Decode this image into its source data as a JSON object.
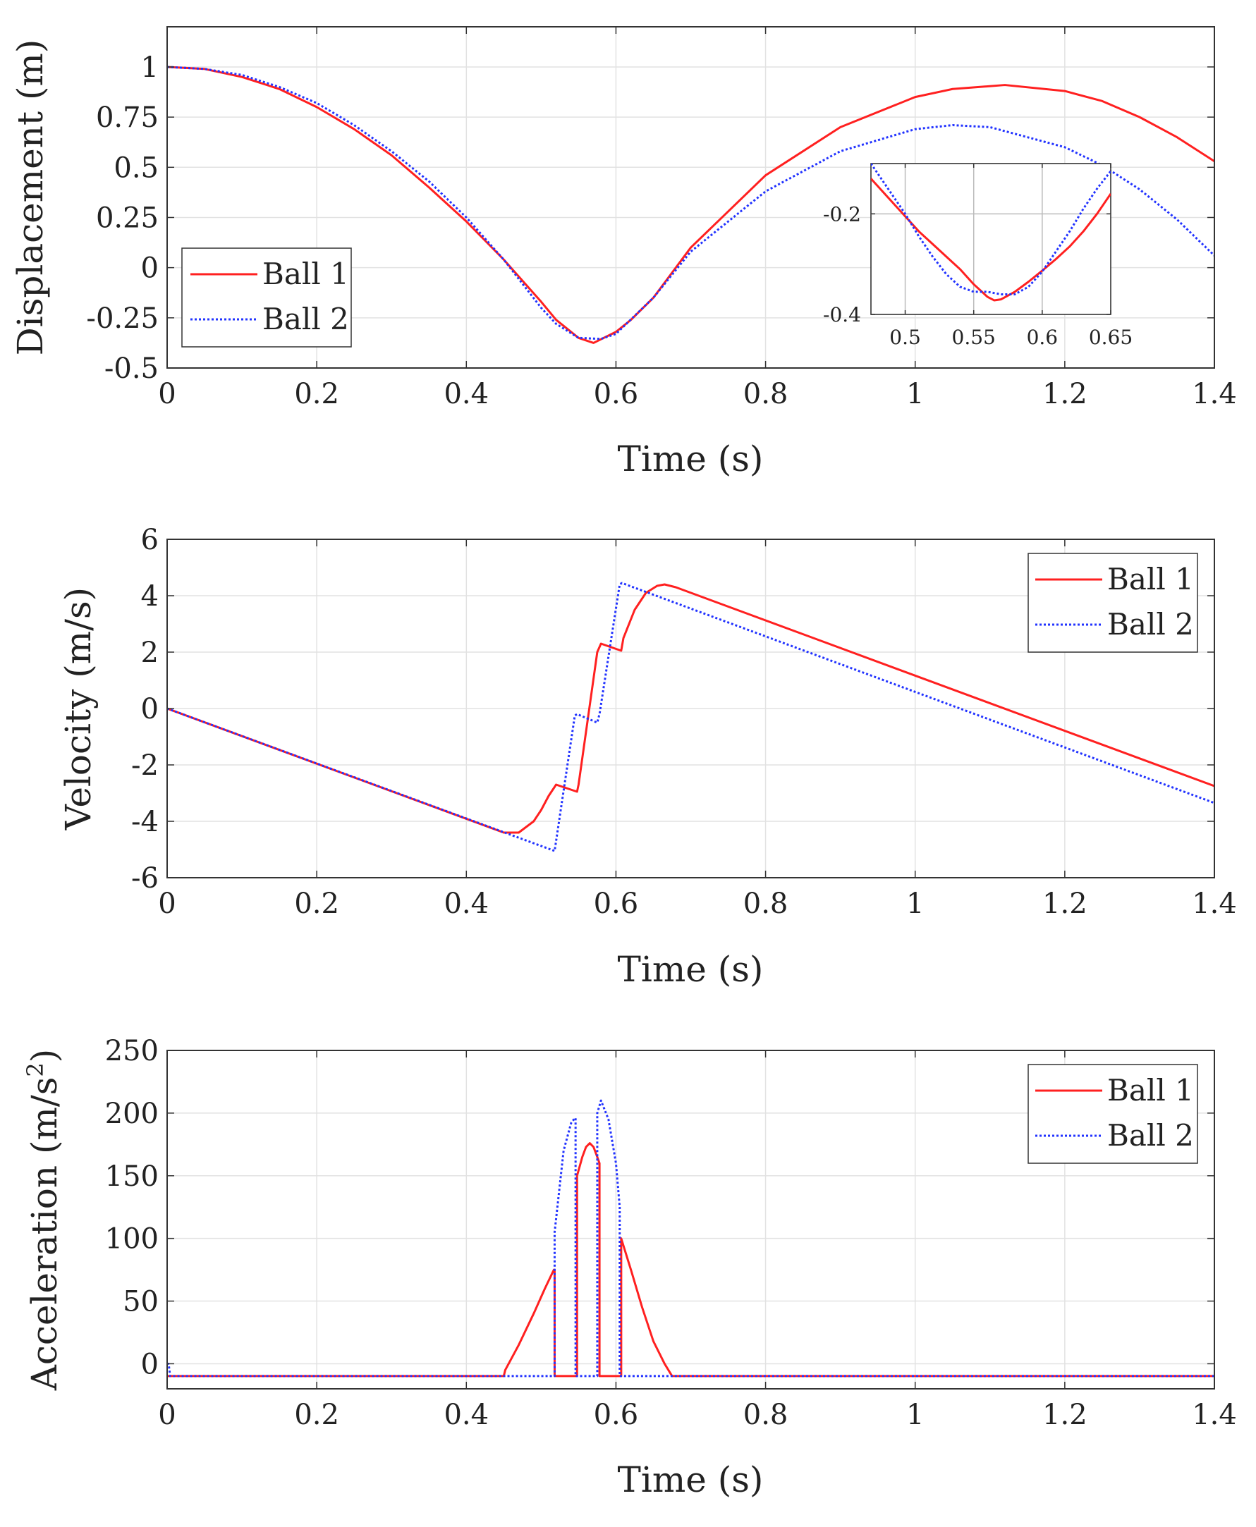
{
  "chart_data": [
    {
      "type": "line",
      "title": "",
      "xlabel": "Time (s)",
      "ylabel": "Displacement (m)",
      "xlim": [
        0,
        1.4
      ],
      "ylim": [
        -0.5,
        1.2
      ],
      "xticks": [
        0,
        0.2,
        0.4,
        0.6,
        0.8,
        1,
        1.2,
        1.4
      ],
      "xtick_labels": [
        "0",
        "0.2",
        "0.4",
        "0.6",
        "0.8",
        "1",
        "1.2",
        "1.4"
      ],
      "yticks": [
        -0.5,
        -0.25,
        0,
        0.25,
        0.5,
        0.75,
        1
      ],
      "ytick_labels": [
        "-0.5",
        "-0.25",
        "0",
        "0.25",
        "0.5",
        "0.75",
        "1"
      ],
      "grid": true,
      "legend_position": "lower-left",
      "series": [
        {
          "name": "Ball 1",
          "color": "#ff2020",
          "style": "solid",
          "x": [
            0,
            0.05,
            0.1,
            0.15,
            0.2,
            0.25,
            0.3,
            0.35,
            0.4,
            0.45,
            0.5,
            0.52,
            0.55,
            0.57,
            0.6,
            0.62,
            0.65,
            0.7,
            0.8,
            0.9,
            1.0,
            1.05,
            1.12,
            1.2,
            1.25,
            1.3,
            1.35,
            1.4
          ],
          "y": [
            1.0,
            0.99,
            0.95,
            0.89,
            0.8,
            0.69,
            0.56,
            0.4,
            0.23,
            0.04,
            -0.17,
            -0.26,
            -0.35,
            -0.375,
            -0.32,
            -0.26,
            -0.15,
            0.1,
            0.46,
            0.7,
            0.85,
            0.89,
            0.91,
            0.88,
            0.83,
            0.75,
            0.65,
            0.53
          ]
        },
        {
          "name": "Ball 2",
          "color": "#2233ff",
          "style": "dotted",
          "x": [
            0,
            0.05,
            0.1,
            0.15,
            0.2,
            0.25,
            0.3,
            0.35,
            0.4,
            0.45,
            0.5,
            0.52,
            0.55,
            0.58,
            0.6,
            0.65,
            0.7,
            0.8,
            0.9,
            1.0,
            1.05,
            1.1,
            1.2,
            1.25,
            1.3,
            1.35,
            1.4
          ],
          "y": [
            1.0,
            0.99,
            0.96,
            0.9,
            0.82,
            0.71,
            0.58,
            0.43,
            0.25,
            0.04,
            -0.2,
            -0.28,
            -0.35,
            -0.355,
            -0.33,
            -0.15,
            0.08,
            0.38,
            0.58,
            0.69,
            0.71,
            0.7,
            0.6,
            0.51,
            0.39,
            0.24,
            0.06
          ]
        }
      ],
      "inset": {
        "xlim": [
          0.475,
          0.65
        ],
        "ylim": [
          -0.4,
          -0.1
        ],
        "xticks": [
          0.5,
          0.55,
          0.6,
          0.65
        ],
        "xtick_labels": [
          "0.5",
          "0.55",
          "0.6",
          "0.65"
        ],
        "yticks": [
          -0.4,
          -0.2
        ],
        "ytick_labels": [
          "-0.4",
          "-0.2"
        ],
        "series": [
          {
            "name": "Ball 1",
            "color": "#ff2020",
            "style": "solid",
            "x": [
              0.475,
              0.49,
              0.5,
              0.51,
              0.52,
              0.53,
              0.54,
              0.55,
              0.56,
              0.565,
              0.57,
              0.58,
              0.59,
              0.6,
              0.61,
              0.62,
              0.63,
              0.64,
              0.65
            ],
            "y": [
              -0.13,
              -0.175,
              -0.205,
              -0.235,
              -0.26,
              -0.285,
              -0.31,
              -0.34,
              -0.365,
              -0.372,
              -0.37,
              -0.355,
              -0.335,
              -0.313,
              -0.29,
              -0.265,
              -0.235,
              -0.2,
              -0.16
            ]
          },
          {
            "name": "Ball 2",
            "color": "#2233ff",
            "style": "dotted",
            "x": [
              0.475,
              0.49,
              0.5,
              0.51,
              0.52,
              0.53,
              0.54,
              0.55,
              0.56,
              0.57,
              0.58,
              0.59,
              0.6,
              0.61,
              0.62,
              0.63,
              0.64,
              0.65
            ],
            "y": [
              -0.1,
              -0.16,
              -0.2,
              -0.245,
              -0.285,
              -0.32,
              -0.345,
              -0.355,
              -0.355,
              -0.36,
              -0.36,
              -0.345,
              -0.315,
              -0.275,
              -0.235,
              -0.19,
              -0.15,
              -0.115
            ]
          }
        ]
      }
    },
    {
      "type": "line",
      "title": "",
      "xlabel": "Time (s)",
      "ylabel": "Velocity (m/s)",
      "xlim": [
        0,
        1.4
      ],
      "ylim": [
        -6,
        6
      ],
      "xticks": [
        0,
        0.2,
        0.4,
        0.6,
        0.8,
        1,
        1.2,
        1.4
      ],
      "xtick_labels": [
        "0",
        "0.2",
        "0.4",
        "0.6",
        "0.8",
        "1",
        "1.2",
        "1.4"
      ],
      "yticks": [
        -6,
        -4,
        -2,
        0,
        2,
        4,
        6
      ],
      "ytick_labels": [
        "-6",
        "-4",
        "-2",
        "0",
        "2",
        "4",
        "6"
      ],
      "grid": true,
      "legend_position": "upper-right",
      "series": [
        {
          "name": "Ball 1",
          "color": "#ff2020",
          "style": "solid",
          "x": [
            0,
            0.45,
            0.47,
            0.49,
            0.5,
            0.51,
            0.52,
            0.548,
            0.55,
            0.575,
            0.58,
            0.607,
            0.61,
            0.625,
            0.64,
            0.655,
            0.665,
            0.68,
            1.4
          ],
          "y": [
            0,
            -4.4,
            -4.4,
            -4.0,
            -3.6,
            -3.1,
            -2.7,
            -2.95,
            -2.7,
            2.0,
            2.3,
            2.05,
            2.5,
            3.5,
            4.1,
            4.35,
            4.4,
            4.3,
            -2.75
          ]
        },
        {
          "name": "Ball 2",
          "color": "#2233ff",
          "style": "dotted",
          "x": [
            0,
            0.518,
            0.545,
            0.548,
            0.575,
            0.578,
            0.605,
            0.608,
            1.4
          ],
          "y": [
            0,
            -5.05,
            -0.25,
            -0.2,
            -0.5,
            -0.2,
            4.4,
            4.45,
            -3.35
          ]
        }
      ]
    },
    {
      "type": "line",
      "title": "",
      "xlabel": "Time (s)",
      "ylabel": "Acceleration (m/s",
      "ylabel_superscript": "2",
      "ylabel_suffix": ")",
      "xlim": [
        0,
        1.4
      ],
      "ylim": [
        -20,
        250
      ],
      "xticks": [
        0,
        0.2,
        0.4,
        0.6,
        0.8,
        1,
        1.2,
        1.4
      ],
      "xtick_labels": [
        "0",
        "0.2",
        "0.4",
        "0.6",
        "0.8",
        "1",
        "1.2",
        "1.4"
      ],
      "yticks": [
        0,
        50,
        100,
        150,
        200,
        250
      ],
      "ytick_labels": [
        "0",
        "50",
        "100",
        "150",
        "200",
        "250"
      ],
      "grid": true,
      "legend_position": "upper-right",
      "series": [
        {
          "name": "Ball 1",
          "color": "#ff2020",
          "style": "solid",
          "x": [
            0,
            0.45,
            0.452,
            0.47,
            0.49,
            0.505,
            0.517,
            0.518,
            0.518,
            0.548,
            0.548,
            0.555,
            0.56,
            0.565,
            0.57,
            0.575,
            0.578,
            0.578,
            0.607,
            0.607,
            0.62,
            0.635,
            0.65,
            0.665,
            0.675,
            1.4
          ],
          "y": [
            -9.81,
            -9.81,
            -5,
            15,
            40,
            60,
            75,
            75,
            -9.81,
            -9.81,
            150,
            165,
            173,
            176,
            173,
            165,
            160,
            -9.81,
            -9.81,
            100,
            75,
            45,
            18,
            0,
            -9.81,
            -9.81
          ]
        },
        {
          "name": "Ball 2",
          "color": "#2233ff",
          "style": "dotted",
          "x": [
            0,
            0.002,
            0.004,
            0.005,
            0.518,
            0.518,
            0.53,
            0.54,
            0.545,
            0.546,
            0.546,
            0.575,
            0.575,
            0.58,
            0.59,
            0.6,
            0.605,
            0.605,
            1.4
          ],
          "y": [
            0,
            0,
            -9.81,
            -9.81,
            -9.81,
            105,
            170,
            192,
            196,
            196,
            -9.81,
            -9.81,
            200,
            210,
            195,
            160,
            125,
            -9.81,
            -9.81
          ]
        }
      ]
    }
  ]
}
